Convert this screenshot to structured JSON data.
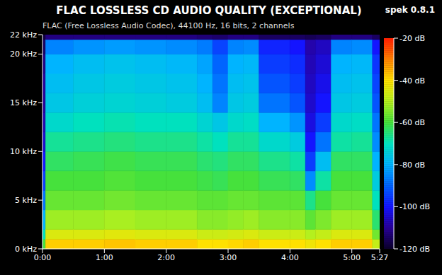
{
  "chart_data": {
    "type": "heatmap",
    "title": "FLAC LOSSLESS CD AUDIO QUALITY (EXCEPTIONAL)",
    "subtitle": "FLAC (Free Lossless Audio Codec), 44100 Hz, 16 bits, 2 channels",
    "annotation": "spek 0.8.1",
    "xlim": [
      0,
      327
    ],
    "xticks": [
      {
        "value": 0,
        "label": "0:00"
      },
      {
        "value": 60,
        "label": "1:00"
      },
      {
        "value": 120,
        "label": "2:00"
      },
      {
        "value": 180,
        "label": "3:00"
      },
      {
        "value": 240,
        "label": "4:00"
      },
      {
        "value": 300,
        "label": "5:00"
      },
      {
        "value": 327,
        "label": "5:27"
      }
    ],
    "ylim": [
      0,
      22
    ],
    "yticks": [
      {
        "value": 0,
        "label": "0 kHz"
      },
      {
        "value": 5,
        "label": "5 kHz"
      },
      {
        "value": 10,
        "label": "10 kHz"
      },
      {
        "value": 15,
        "label": "15 kHz"
      },
      {
        "value": 20,
        "label": "20 kHz"
      },
      {
        "value": 22,
        "label": "22 kHz"
      }
    ],
    "x_bins": [
      0,
      3,
      30,
      60,
      90,
      120,
      150,
      165,
      180,
      195,
      210,
      240,
      255,
      265,
      280,
      300,
      320,
      327
    ],
    "y_bins": [
      0,
      1,
      2,
      4,
      6,
      8,
      10,
      12,
      14,
      16,
      18,
      20,
      21.5,
      22
    ],
    "cells": [
      [
        -60,
        -70,
        -80,
        -88,
        -95,
        -100,
        -105,
        -108,
        -110,
        -110,
        -112,
        -115,
        -118
      ],
      [
        -38,
        -45,
        -52,
        -57,
        -60,
        -63,
        -67,
        -72,
        -76,
        -78,
        -80,
        -86,
        -112
      ],
      [
        -38,
        -45,
        -52,
        -57,
        -60,
        -62,
        -66,
        -70,
        -74,
        -76,
        -78,
        -84,
        -112
      ],
      [
        -37,
        -44,
        -51,
        -56,
        -59,
        -61,
        -65,
        -69,
        -73,
        -75,
        -77,
        -83,
        -112
      ],
      [
        -38,
        -45,
        -52,
        -57,
        -60,
        -62,
        -66,
        -70,
        -74,
        -76,
        -78,
        -84,
        -112
      ],
      [
        -38,
        -45,
        -52,
        -57,
        -60,
        -62,
        -66,
        -70,
        -75,
        -77,
        -79,
        -85,
        -112
      ],
      [
        -40,
        -47,
        -54,
        -58,
        -61,
        -64,
        -68,
        -73,
        -78,
        -80,
        -82,
        -87,
        -113
      ],
      [
        -40,
        -47,
        -54,
        -58,
        -62,
        -65,
        -70,
        -76,
        -86,
        -88,
        -90,
        -94,
        -114
      ],
      [
        -39,
        -46,
        -53,
        -57,
        -60,
        -63,
        -67,
        -72,
        -76,
        -78,
        -80,
        -86,
        -112
      ],
      [
        -38,
        -45,
        -52,
        -57,
        -60,
        -63,
        -67,
        -71,
        -75,
        -77,
        -79,
        -85,
        -112
      ],
      [
        -40,
        -47,
        -54,
        -58,
        -62,
        -66,
        -72,
        -80,
        -88,
        -92,
        -95,
        -98,
        -115
      ],
      [
        -40,
        -47,
        -54,
        -58,
        -63,
        -68,
        -75,
        -84,
        -92,
        -95,
        -97,
        -100,
        -115
      ],
      [
        -42,
        -50,
        -58,
        -66,
        -85,
        -95,
        -100,
        -103,
        -105,
        -106,
        -107,
        -108,
        -116
      ],
      [
        -40,
        -48,
        -55,
        -60,
        -68,
        -78,
        -88,
        -95,
        -100,
        -102,
        -104,
        -106,
        -115
      ],
      [
        -38,
        -45,
        -52,
        -57,
        -60,
        -63,
        -68,
        -72,
        -76,
        -78,
        -80,
        -86,
        -112
      ],
      [
        -38,
        -45,
        -52,
        -57,
        -60,
        -63,
        -67,
        -71,
        -75,
        -77,
        -79,
        -85,
        -112
      ],
      [
        -48,
        -56,
        -64,
        -70,
        -75,
        -80,
        -85,
        -88,
        -92,
        -94,
        -96,
        -100,
        -115
      ]
    ],
    "color_range": [
      -120,
      -20
    ],
    "color_ticks": [
      {
        "value": -20,
        "label": "-20 dB"
      },
      {
        "value": -40,
        "label": "-40 dB"
      },
      {
        "value": -60,
        "label": "-60 dB"
      },
      {
        "value": -80,
        "label": "-80 dB"
      },
      {
        "value": -100,
        "label": "-100 dB"
      },
      {
        "value": -120,
        "label": "-120 dB"
      }
    ]
  }
}
